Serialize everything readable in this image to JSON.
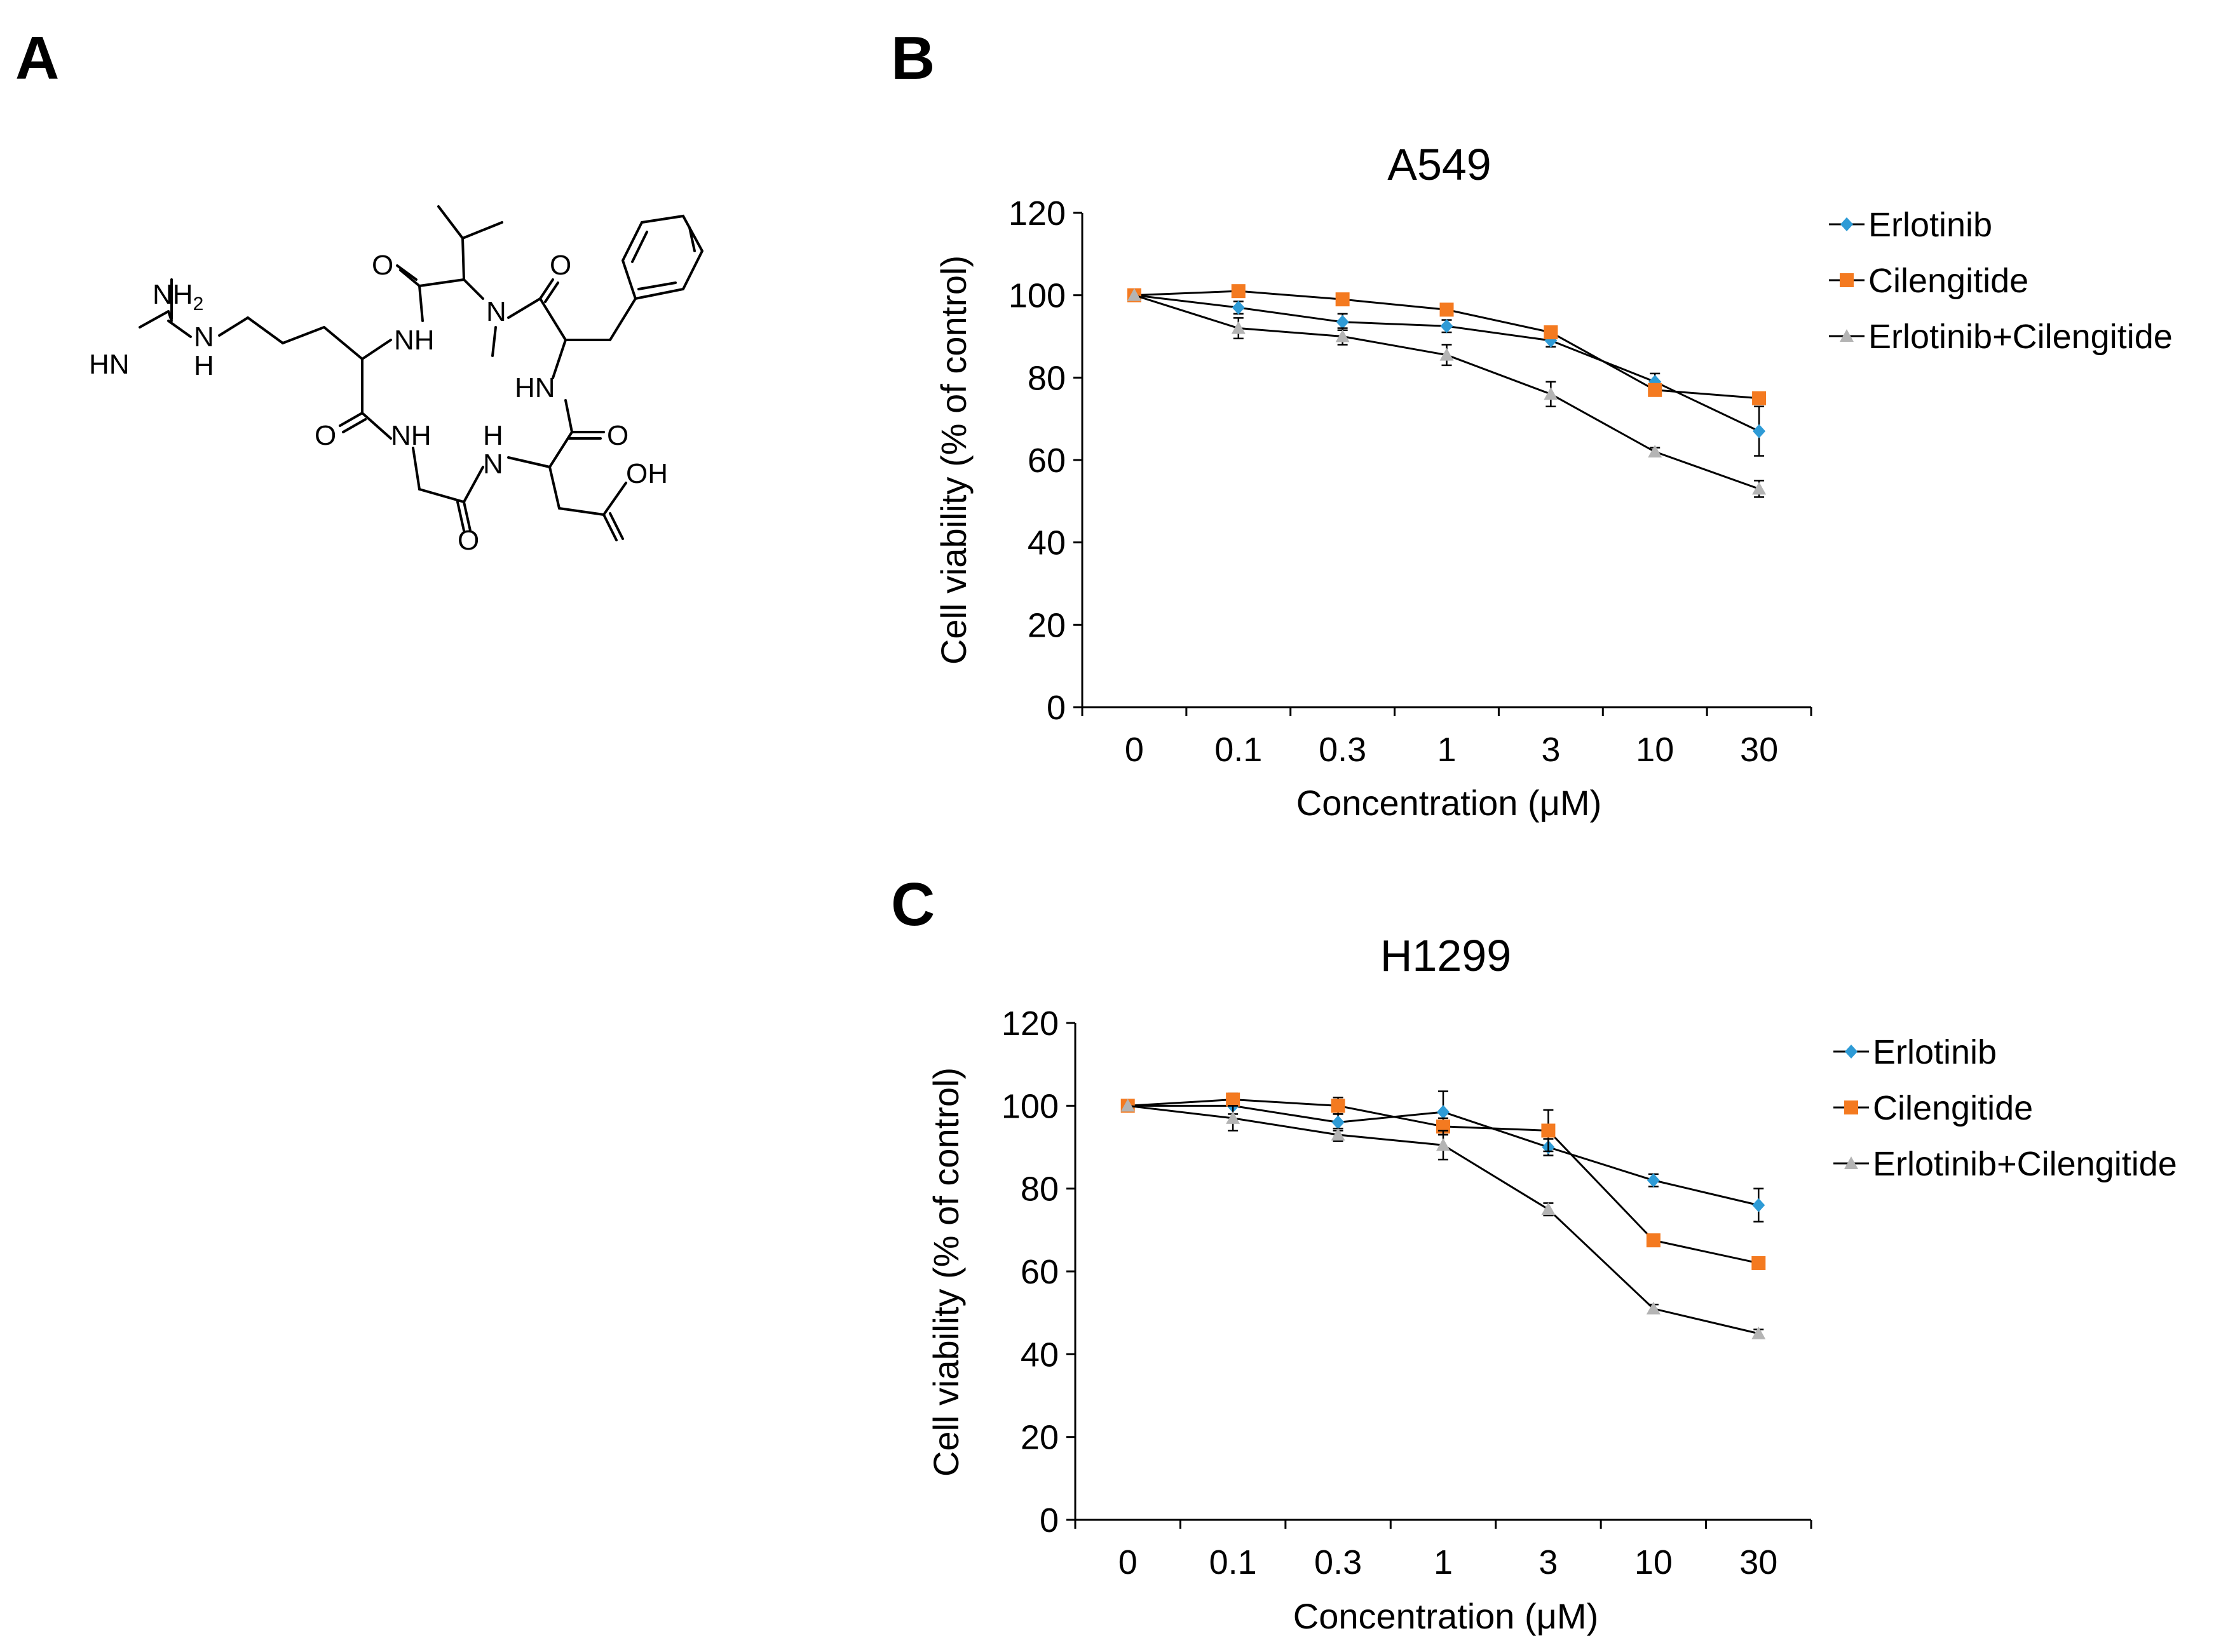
{
  "panel_labels": {
    "a": "A",
    "b": "B",
    "c": "C"
  },
  "molecule": {
    "atoms": {
      "nh2": "NH",
      "nh2_sub": "2",
      "hn_imine": "HN",
      "n_guan": "N",
      "h_guan": "H",
      "o1": "O",
      "o2": "O",
      "o3": "O",
      "o4": "O",
      "o5": "O",
      "nh_top": "NH",
      "n_methyl": "N",
      "hn_right": "HN",
      "nh_bottom_left": "NH",
      "h_bottom": "H",
      "n_bottom": "N",
      "oh": "OH"
    }
  },
  "colors": {
    "erlotinib": "#2e9bd6",
    "cilengitide": "#f47a20",
    "combo": "#b4b4b4",
    "line": "#000000",
    "axis": "#000000"
  },
  "chart_data": [
    {
      "id": "B",
      "type": "line",
      "title": "A549",
      "xlabel": "Concentration (μM)",
      "ylabel": "Cell viability (% of control)",
      "categories": [
        "0",
        "0.1",
        "0.3",
        "1",
        "3",
        "10",
        "30"
      ],
      "ylim": [
        0,
        120
      ],
      "yticks": [
        0,
        20,
        40,
        60,
        80,
        100,
        120
      ],
      "legend_position": "top-right",
      "series": [
        {
          "name": "Erlotinib",
          "marker": "diamond",
          "color_key": "erlotinib",
          "values": [
            100,
            97,
            93.5,
            92.5,
            89,
            79,
            67
          ],
          "errors": [
            0,
            1.5,
            2,
            1.5,
            1.5,
            2,
            6
          ]
        },
        {
          "name": "Cilengitide",
          "marker": "square",
          "color_key": "cilengitide",
          "values": [
            100,
            101,
            99,
            96.5,
            91,
            77,
            75
          ],
          "errors": [
            0,
            1,
            1,
            1,
            1,
            1,
            1
          ]
        },
        {
          "name": "Erlotinib+Cilengitide",
          "marker": "triangle",
          "color_key": "combo",
          "values": [
            100,
            92,
            90,
            85.5,
            76,
            62,
            53
          ],
          "errors": [
            0,
            2.5,
            2,
            2.5,
            3,
            1,
            2
          ]
        }
      ]
    },
    {
      "id": "C",
      "type": "line",
      "title": "H1299",
      "xlabel": "Concentration (μM)",
      "ylabel": "Cell viability (% of control)",
      "categories": [
        "0",
        "0.1",
        "0.3",
        "1",
        "3",
        "10",
        "30"
      ],
      "ylim": [
        0,
        120
      ],
      "yticks": [
        0,
        20,
        40,
        60,
        80,
        100,
        120
      ],
      "legend_position": "top-right",
      "series": [
        {
          "name": "Erlotinib",
          "marker": "diamond",
          "color_key": "erlotinib",
          "values": [
            100,
            100,
            96,
            98.5,
            90,
            82,
            76
          ],
          "errors": [
            0,
            2,
            2,
            5,
            2,
            1.5,
            4
          ]
        },
        {
          "name": "Cilengitide",
          "marker": "square",
          "color_key": "cilengitide",
          "values": [
            100,
            101.5,
            100,
            95,
            94,
            67.5,
            62
          ],
          "errors": [
            0,
            1.5,
            2,
            2,
            5,
            1,
            1
          ]
        },
        {
          "name": "Erlotinib+Cilengitide",
          "marker": "triangle",
          "color_key": "combo",
          "values": [
            100,
            97,
            93,
            90.5,
            75,
            51,
            45
          ],
          "errors": [
            0,
            3,
            1.5,
            3.5,
            1.5,
            1,
            1
          ]
        }
      ]
    }
  ]
}
